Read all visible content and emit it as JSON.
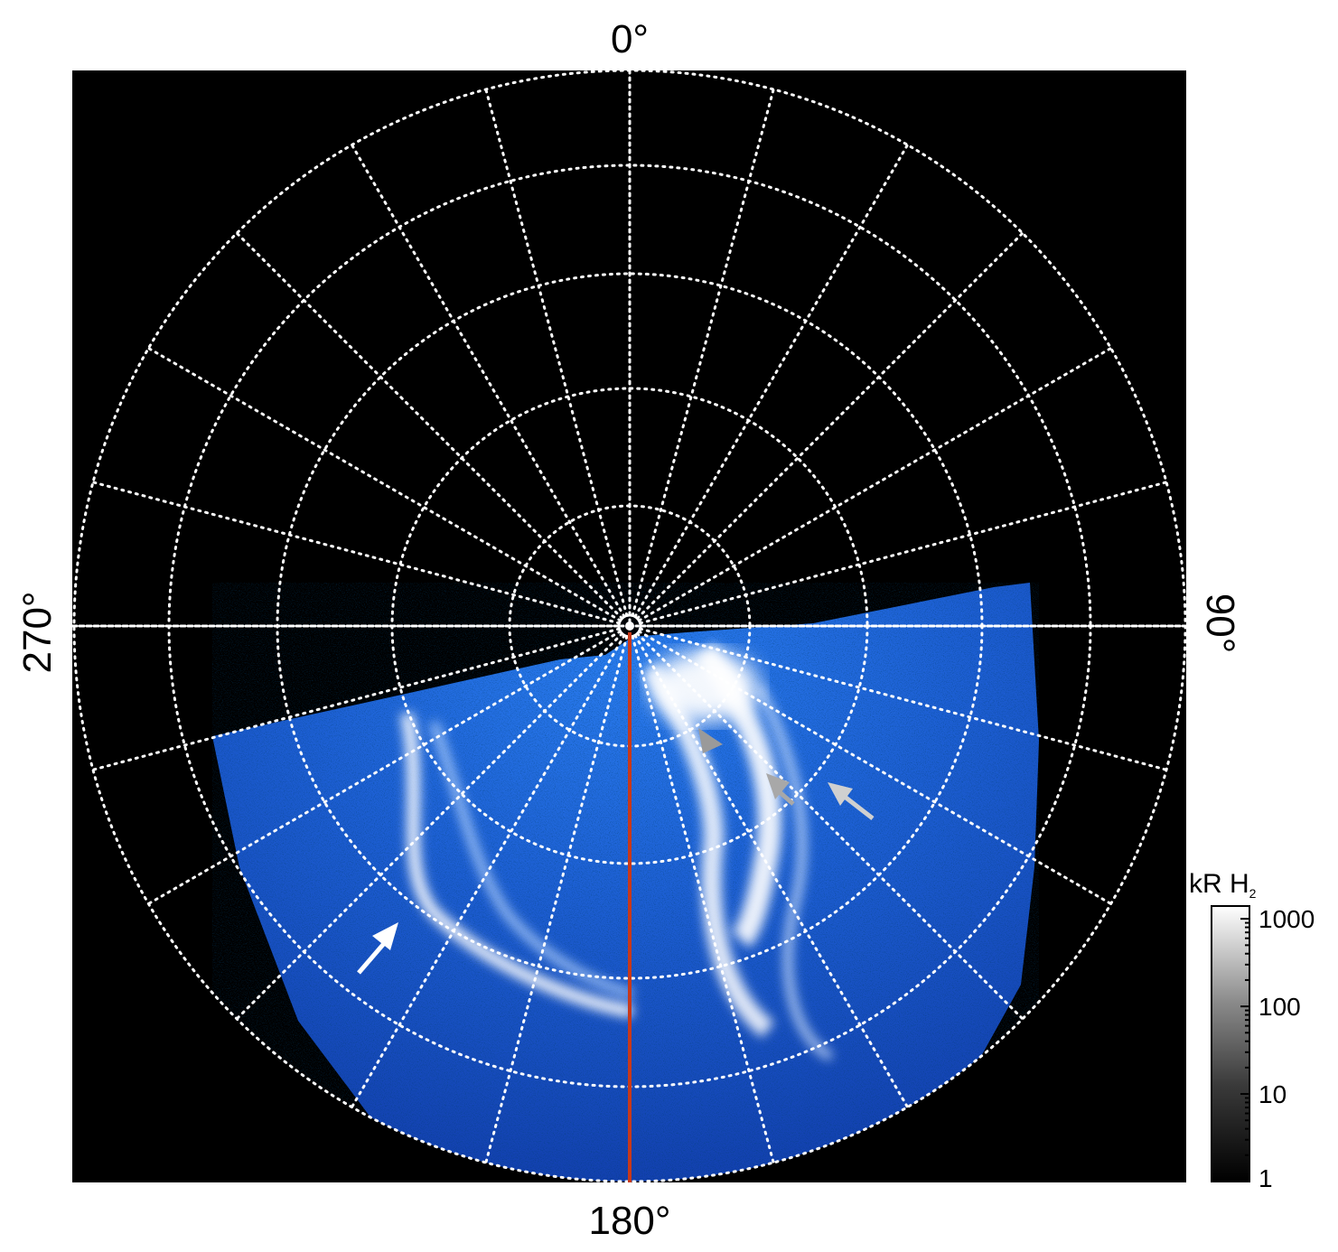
{
  "projection_labels": {
    "top": "0°",
    "right": "90°",
    "bottom": "180°",
    "left": "270°"
  },
  "colorbar": {
    "title_main": "kR H",
    "title_sub": "2",
    "ticks": [
      {
        "value": 1000,
        "label": "1000"
      },
      {
        "value": 100,
        "label": "100"
      },
      {
        "value": 10,
        "label": "10"
      },
      {
        "value": 1,
        "label": "1"
      }
    ],
    "scale": "log",
    "range": [
      1,
      1400
    ]
  },
  "colors": {
    "background": "#000000",
    "grid": "#ffffff",
    "meridian": "#c8391a",
    "aurora_dim": "#0a2a9a",
    "aurora_mid": "#1f6fe0",
    "aurora_bright": "#ffffff",
    "arrow_white": "#ffffff",
    "arrow_grey": "#a8a8a8"
  },
  "grid": {
    "style": "dotted",
    "meridian_spacing_deg": 15,
    "ring_count": 5
  },
  "arrows": [
    {
      "name": "arrow-white-left",
      "color": "white"
    },
    {
      "name": "arrow-grey-1",
      "color": "grey"
    },
    {
      "name": "arrow-grey-2",
      "color": "grey"
    },
    {
      "name": "arrow-light-grey",
      "color": "lightgrey"
    }
  ]
}
